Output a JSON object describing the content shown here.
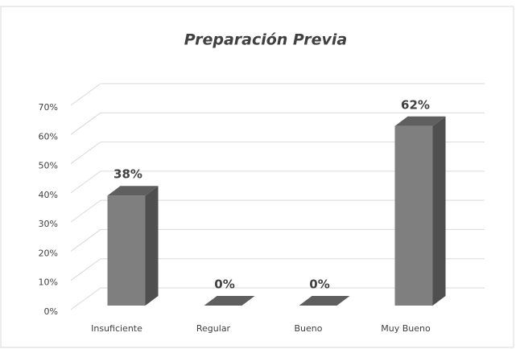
{
  "chart_data": {
    "type": "bar3d",
    "title": "Preparación Previa",
    "categories": [
      "Insuficiente",
      "Regular",
      "Bueno",
      "Muy Bueno"
    ],
    "values": [
      38,
      0,
      0,
      62
    ],
    "value_labels": [
      "38%",
      "0%",
      "0%",
      "62%"
    ],
    "color": "#7f7f7f",
    "ylim": [
      0,
      70
    ],
    "yticks": [
      {
        "value": 0,
        "label": "0%"
      },
      {
        "value": 10,
        "label": "10%"
      },
      {
        "value": 20,
        "label": "20%"
      },
      {
        "value": 30,
        "label": "30%"
      },
      {
        "value": 40,
        "label": "40%"
      },
      {
        "value": 50,
        "label": "50%"
      },
      {
        "value": 60,
        "label": "60%"
      },
      {
        "value": 70,
        "label": "70%"
      }
    ],
    "grid": true
  }
}
